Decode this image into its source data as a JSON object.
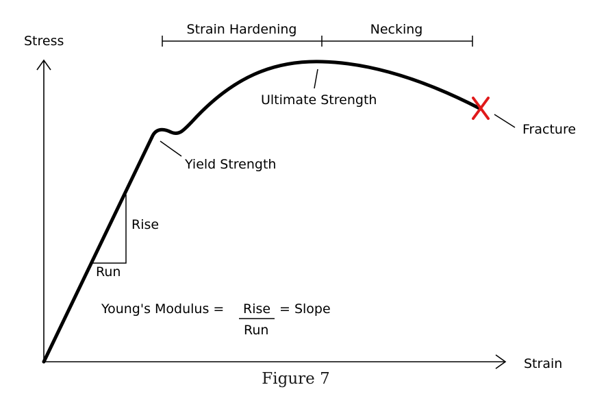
{
  "axes": {
    "y_label": "Stress",
    "x_label": "Strain"
  },
  "regions": {
    "strain_hardening": "Strain Hardening",
    "necking": "Necking"
  },
  "points": {
    "ultimate_strength": "Ultimate Strength",
    "yield_strength": "Yield Strength",
    "fracture": "Fracture"
  },
  "slope_triangle": {
    "rise": "Rise",
    "run": "Run"
  },
  "formula": {
    "lhs": "Young's Modulus =",
    "numerator": "Rise",
    "denominator": "Run",
    "rhs": "= Slope"
  },
  "caption": "Figure 7",
  "colors": {
    "curve": "#000000",
    "fracture_mark": "#e0191a"
  }
}
